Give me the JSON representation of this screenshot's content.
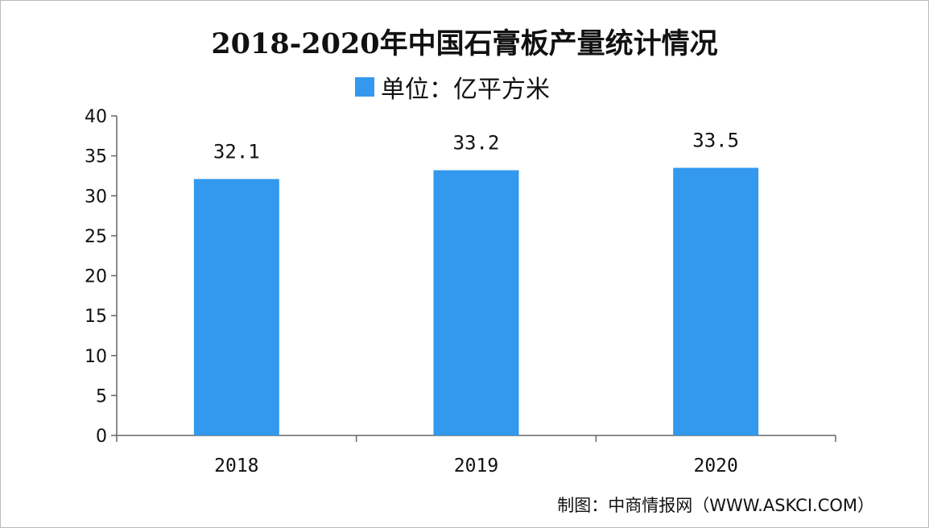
{
  "chart_data": {
    "type": "bar",
    "title": "2018-2020年中国石膏板产量统计情况",
    "legend": {
      "label": "单位：亿平方米",
      "placement": "top"
    },
    "categories": [
      "2018",
      "2019",
      "2020"
    ],
    "values": [
      32.1,
      33.2,
      33.5
    ],
    "value_labels": [
      "32.1",
      "33.2",
      "33.5"
    ],
    "ylim": [
      0,
      40
    ],
    "yticks": [
      "0",
      "5",
      "10",
      "15",
      "20",
      "25",
      "30",
      "35",
      "40"
    ],
    "xlabel": "",
    "ylabel": "",
    "grid": false,
    "bar_color": "#3399EE"
  },
  "source": "制图：中商情报网（WWW.ASKCI.COM）"
}
